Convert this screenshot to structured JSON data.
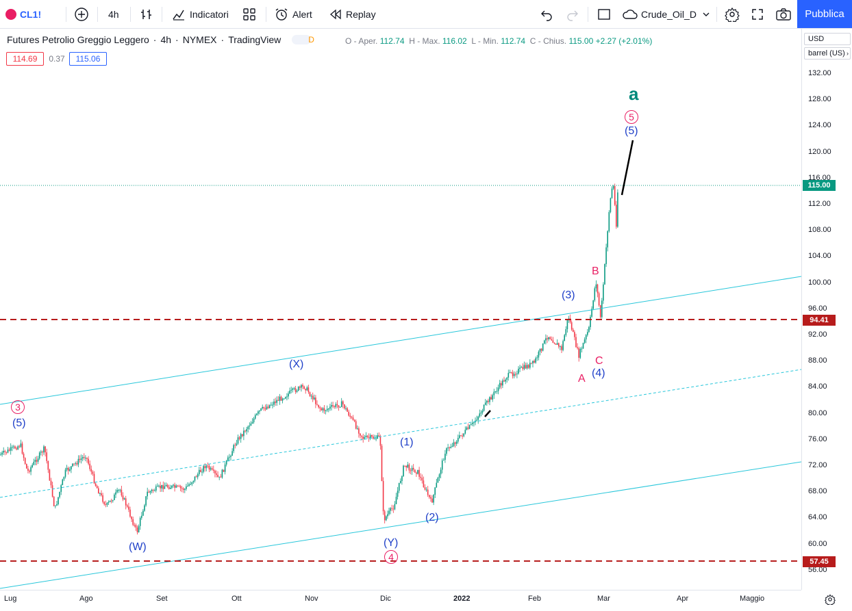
{
  "toolbar": {
    "symbol": "CL1!",
    "interval": "4h",
    "indicators": "Indicatori",
    "alert": "Alert",
    "replay": "Replay",
    "layout_name": "Crude_Oil_D",
    "publish": "Pubblica"
  },
  "legend": {
    "title": "Futures Petrolio Greggio Leggero",
    "interval": "4h",
    "exchange": "NYMEX",
    "source": "TradingView",
    "badge": "D",
    "open_label": "O - Aper.",
    "open": "112.74",
    "high_label": "H - Max.",
    "high": "116.02",
    "low_label": "L - Min.",
    "low": "112.74",
    "close_label": "C - Chius.",
    "close": "115.00",
    "change": "+2.27 (+2.01%)",
    "bid": "114.69",
    "spread": "0.37",
    "ask": "115.06"
  },
  "price_axis": {
    "currency": "USD",
    "unit": "barrel (US)",
    "ticks": [
      "132.00",
      "128.00",
      "124.00",
      "120.00",
      "116.00",
      "112.00",
      "108.00",
      "104.00",
      "100.00",
      "96.00",
      "92.00",
      "88.00",
      "84.00",
      "80.00",
      "76.00",
      "72.00",
      "68.00",
      "64.00",
      "60.00",
      "56.00"
    ],
    "last_price": "115.00",
    "level_high": "94.41",
    "level_low": "57.45"
  },
  "time_axis": [
    "Lug",
    "Ago",
    "Set",
    "Ott",
    "Nov",
    "Dic",
    "2022",
    "Feb",
    "Mar",
    "Apr",
    "Maggio"
  ],
  "wave_labels": {
    "a": "a",
    "five_circ": "5",
    "five_paren_top": "(5)",
    "b": "B",
    "three_paren": "(3)",
    "c": "C",
    "a_upper": "A",
    "four_paren": "(4)",
    "x_paren": "(X)",
    "three_circ": "3",
    "five_paren_left": "(5)",
    "one_paren": "(1)",
    "two_paren": "(2)",
    "w_paren": "(W)",
    "y_paren": "(Y)",
    "four_circ": "4"
  },
  "colors": {
    "accent": "#2962ff",
    "up": "#089981",
    "down": "#f23645",
    "level_line": "#b71c1c",
    "channel": "#26c6da",
    "wave_blue": "#1e3fc8",
    "wave_pink": "#e91e63",
    "wave_green": "#00897b"
  }
}
